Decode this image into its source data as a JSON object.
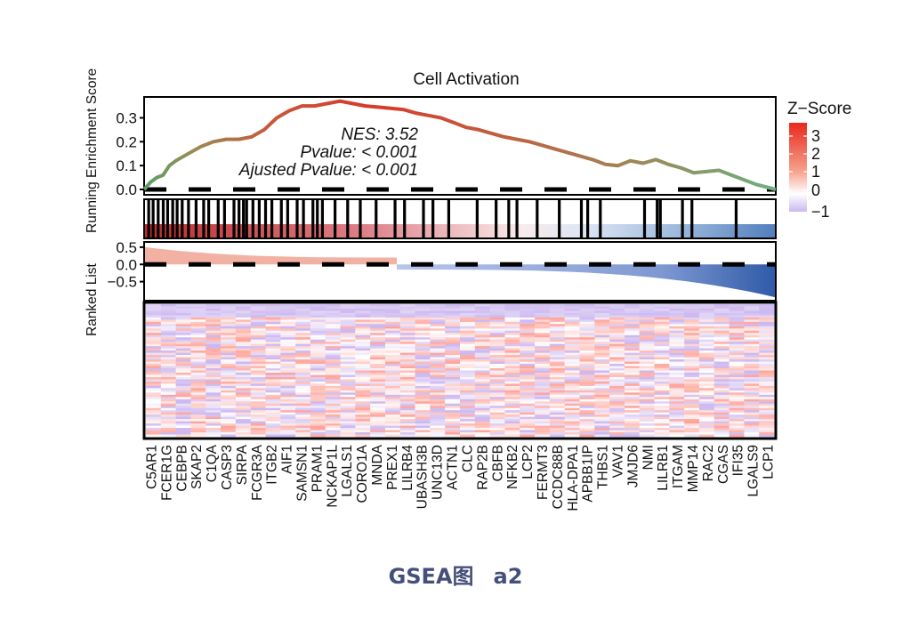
{
  "caption": {
    "main": "GSEA图",
    "sub": "a2"
  },
  "chart_data": {
    "type": "line",
    "title": "Cell Activation",
    "panels": [
      {
        "name": "running-enrichment-score",
        "ylabel": "Running Enrichment Score",
        "yticks": [
          "0.0",
          "0.1",
          "0.2",
          "0.3"
        ],
        "ylim": [
          0.0,
          0.38
        ]
      },
      {
        "name": "hit-barcode"
      },
      {
        "name": "ranked-list",
        "ylabel": "Ranked List",
        "yticks": [
          "0.5",
          "0.0",
          "-0.5"
        ],
        "ylim": [
          -1.0,
          0.6
        ]
      },
      {
        "name": "expression-heatmap"
      }
    ],
    "annotation": {
      "nes": "NES: 3.52",
      "pvalue": "Pvalue: < 0.001",
      "adj_pvalue": "Ajusted Pvalue: < 0.001"
    },
    "legend": {
      "title": "Z−Score",
      "ticks": [
        "3",
        "2",
        "1",
        "0",
        "−1"
      ],
      "colors": {
        "high": "#e8291c",
        "mid": "#ffffff",
        "low": "#c9b8f0"
      }
    },
    "running_es": {
      "x": [
        0,
        0.01,
        0.02,
        0.03,
        0.04,
        0.05,
        0.07,
        0.09,
        0.11,
        0.13,
        0.15,
        0.17,
        0.19,
        0.21,
        0.23,
        0.25,
        0.27,
        0.29,
        0.31,
        0.33,
        0.35,
        0.37,
        0.39,
        0.41,
        0.43,
        0.45,
        0.47,
        0.49,
        0.51,
        0.53,
        0.55,
        0.57,
        0.59,
        0.61,
        0.63,
        0.65,
        0.67,
        0.69,
        0.71,
        0.73,
        0.75,
        0.77,
        0.79,
        0.81,
        0.83,
        0.85,
        0.87,
        0.89,
        0.91,
        0.93,
        0.95,
        0.97,
        1.0
      ],
      "y": [
        0.0,
        0.03,
        0.05,
        0.06,
        0.1,
        0.12,
        0.15,
        0.18,
        0.2,
        0.21,
        0.21,
        0.22,
        0.25,
        0.3,
        0.33,
        0.35,
        0.35,
        0.36,
        0.37,
        0.36,
        0.35,
        0.345,
        0.34,
        0.335,
        0.32,
        0.31,
        0.3,
        0.28,
        0.26,
        0.25,
        0.235,
        0.22,
        0.21,
        0.2,
        0.185,
        0.17,
        0.155,
        0.14,
        0.125,
        0.105,
        0.1,
        0.12,
        0.11,
        0.125,
        0.105,
        0.09,
        0.07,
        0.075,
        0.08,
        0.06,
        0.04,
        0.02,
        0.0
      ]
    },
    "hits_x": [
      0.005,
      0.012,
      0.02,
      0.028,
      0.035,
      0.043,
      0.05,
      0.058,
      0.068,
      0.08,
      0.092,
      0.1,
      0.115,
      0.125,
      0.14,
      0.148,
      0.155,
      0.16,
      0.17,
      0.18,
      0.19,
      0.2,
      0.215,
      0.225,
      0.24,
      0.25,
      0.265,
      0.272,
      0.28,
      0.3,
      0.32,
      0.34,
      0.365,
      0.395,
      0.41,
      0.44,
      0.455,
      0.48,
      0.525,
      0.555,
      0.575,
      0.588,
      0.62,
      0.655,
      0.69,
      0.7,
      0.72,
      0.79,
      0.81,
      0.815,
      0.85,
      0.865,
      0.935
    ],
    "genes": [
      "C5AR1",
      "FCER1G",
      "CEBPB",
      "SKAP2",
      "C1QA",
      "CASP3",
      "SIRPA",
      "FCGR3A",
      "ITGB2",
      "AIF1",
      "SAMSN1",
      "PRAM1",
      "NCKAP1L",
      "LGALS1",
      "CORO1A",
      "MNDA",
      "PREX1",
      "LILRB4",
      "UBASH3B",
      "UNC13D",
      "ACTN1",
      "CLC",
      "RAP2B",
      "CBFB",
      "NFKB2",
      "LCP2",
      "FERMT3",
      "CCDC88B",
      "HLA-DPA1",
      "APBB1IP",
      "THBS1",
      "VAV1",
      "JMJD6",
      "NMI",
      "LILRB1",
      "ITGAM",
      "MMP14",
      "RAC2",
      "CGAS",
      "IFI35",
      "LGALS9",
      "LCP1"
    ],
    "ranked_list": {
      "pos_start": 0.5,
      "pos_end": 0.2,
      "cross_x": 0.4,
      "neg_start": -0.15,
      "neg_end": -0.95
    }
  }
}
